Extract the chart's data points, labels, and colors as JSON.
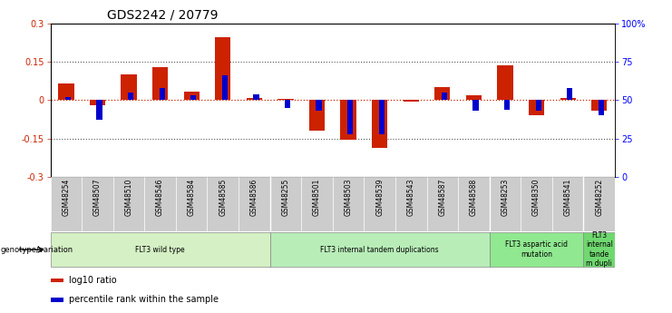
{
  "title": "GDS2242 / 20779",
  "samples": [
    "GSM48254",
    "GSM48507",
    "GSM48510",
    "GSM48546",
    "GSM48584",
    "GSM48585",
    "GSM48586",
    "GSM48255",
    "GSM48501",
    "GSM48503",
    "GSM48539",
    "GSM48543",
    "GSM48587",
    "GSM48588",
    "GSM48253",
    "GSM48350",
    "GSM48541",
    "GSM48252"
  ],
  "log10_ratio": [
    0.065,
    -0.02,
    0.1,
    0.13,
    0.035,
    0.245,
    0.01,
    0.005,
    -0.12,
    -0.155,
    -0.185,
    -0.005,
    0.05,
    0.02,
    0.135,
    -0.06,
    0.01,
    -0.04
  ],
  "percentile_rank": [
    52,
    37,
    55,
    58,
    53,
    66,
    54,
    45,
    43,
    28,
    28,
    50,
    55,
    43,
    44,
    43,
    58,
    40
  ],
  "groups": [
    {
      "label": "FLT3 wild type",
      "start": 0,
      "end": 6,
      "color": "#d4f0c4"
    },
    {
      "label": "FLT3 internal tandem duplications",
      "start": 7,
      "end": 13,
      "color": "#b8edb8"
    },
    {
      "label": "FLT3 aspartic acid\nmutation",
      "start": 14,
      "end": 16,
      "color": "#90e890"
    },
    {
      "label": "FLT3\ninternal\ntande\nm dupli",
      "start": 17,
      "end": 17,
      "color": "#70d870"
    }
  ],
  "group_dividers": [
    6.5,
    13.5,
    16.5
  ],
  "ylim": [
    -0.3,
    0.3
  ],
  "y2lim": [
    0,
    100
  ],
  "yticks_left": [
    -0.3,
    -0.15,
    0.0,
    0.15,
    0.3
  ],
  "ytick_labels_left": [
    "-0.3",
    "-0.15",
    "0",
    "0.15",
    "0.3"
  ],
  "y2ticks": [
    0,
    25,
    50,
    75,
    100
  ],
  "y2ticklabels": [
    "0",
    "25",
    "50",
    "75",
    "100%"
  ],
  "bar_color_red": "#cc2200",
  "bar_color_blue": "#0000cc",
  "dotted_line_color": "#555555",
  "zero_line_color": "#cc2200",
  "background_color": "#ffffff",
  "tick_bg_color": "#cccccc",
  "title_fontsize": 10,
  "legend_items": [
    "log10 ratio",
    "percentile rank within the sample"
  ],
  "legend_colors": [
    "#cc2200",
    "#0000cc"
  ]
}
